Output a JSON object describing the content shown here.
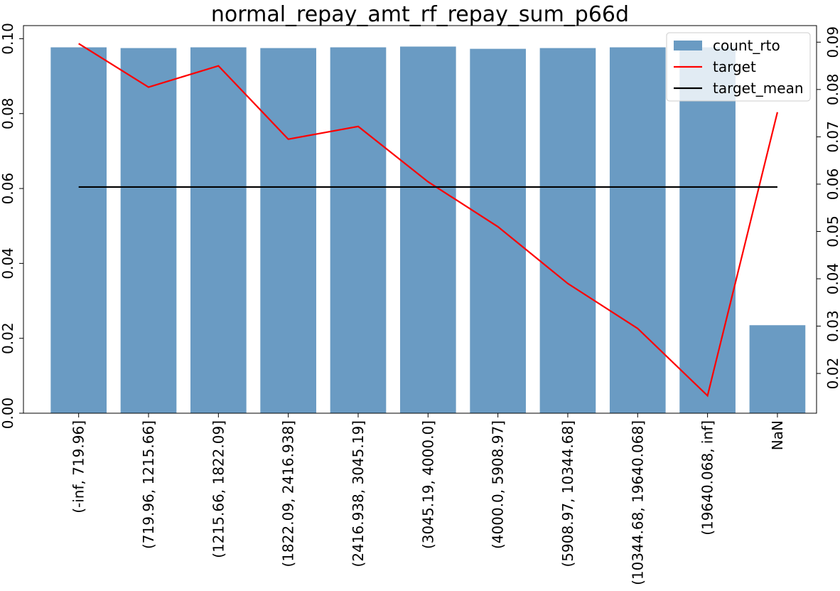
{
  "chart_data": {
    "type": "bar",
    "title": "normal_repay_amt_rf_repay_sum_p66d",
    "categories": [
      "(-inf, 719.96]",
      "(719.96, 1215.66]",
      "(1215.66, 1822.09]",
      "(1822.09, 2416.938]",
      "(2416.938, 3045.19]",
      "(3045.19, 4000.0]",
      "(4000.0, 5908.97]",
      "(5908.97, 10344.68]",
      "(10344.68, 19640.068]",
      "(19640.068, inf]",
      "NaN"
    ],
    "series": [
      {
        "name": "count_rto",
        "type": "bar",
        "axis": "left",
        "color": "#6a9bc3",
        "values": [
          0.0977,
          0.0975,
          0.0977,
          0.0975,
          0.0977,
          0.0979,
          0.0973,
          0.0975,
          0.0977,
          0.0977,
          0.0235
        ]
      },
      {
        "name": "target",
        "type": "line",
        "axis": "right",
        "color": "#ff0000",
        "values": [
          0.0897,
          0.0805,
          0.085,
          0.0695,
          0.0722,
          0.0605,
          0.051,
          0.039,
          0.0295,
          0.0153,
          0.0752
        ]
      },
      {
        "name": "target_mean",
        "type": "line",
        "axis": "right",
        "color": "#000000",
        "values": [
          0.0594,
          0.0594,
          0.0594,
          0.0594,
          0.0594,
          0.0594,
          0.0594,
          0.0594,
          0.0594,
          0.0594,
          0.0594
        ]
      }
    ],
    "left_axis": {
      "ylim": [
        0,
        0.1035
      ],
      "ticks": [
        "0.00",
        "0.02",
        "0.04",
        "0.06",
        "0.08",
        "0.10"
      ],
      "tick_values": [
        0,
        0.02,
        0.04,
        0.06,
        0.08,
        0.1
      ]
    },
    "right_axis": {
      "ylim": [
        0.0116,
        0.0935
      ],
      "ticks": [
        "0.02",
        "0.03",
        "0.04",
        "0.05",
        "0.06",
        "0.07",
        "0.08",
        "0.09"
      ],
      "tick_values": [
        0.02,
        0.03,
        0.04,
        0.05,
        0.06,
        0.07,
        0.08,
        0.09
      ]
    },
    "xlabel": "",
    "ylabel": "",
    "grid": false,
    "legend_position": "top-right"
  }
}
